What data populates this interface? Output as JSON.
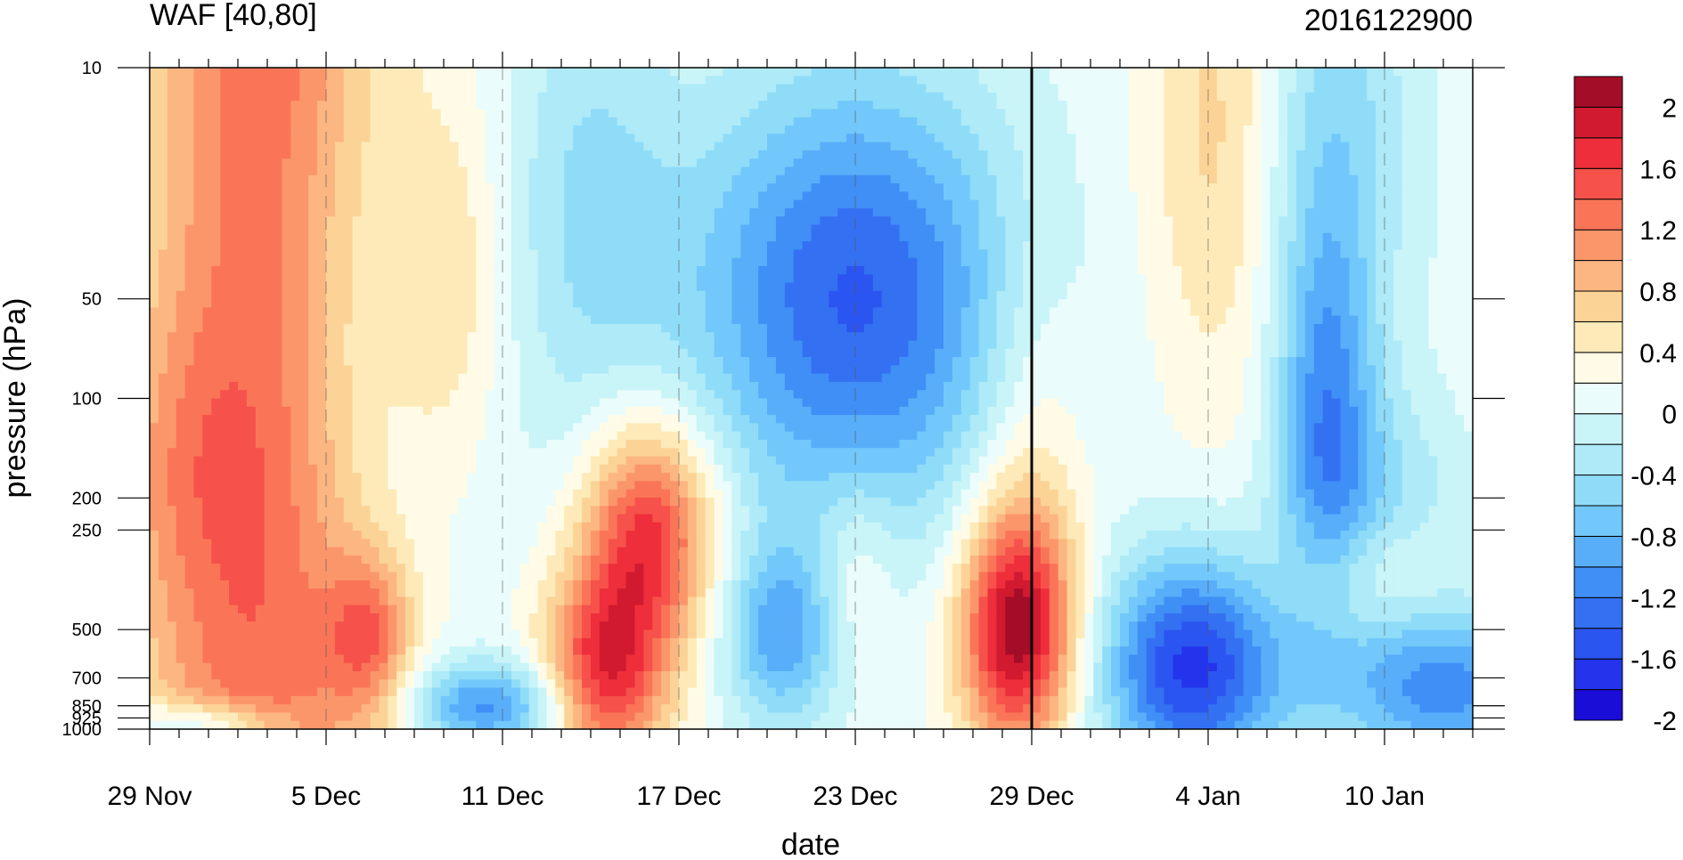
{
  "chart_data": {
    "type": "heatmap",
    "title_left": "WAF [40,80]",
    "title_right": "2016122900",
    "xlabel": "date",
    "ylabel": "pressure (hPa)",
    "x_tick_labels": [
      "29 Nov",
      "5 Dec",
      "11 Dec",
      "17 Dec",
      "23 Dec",
      "29 Dec",
      "4 Jan",
      "10 Jan"
    ],
    "x_tick_dates": [
      "2016-11-29",
      "2016-12-05",
      "2016-12-11",
      "2016-12-17",
      "2016-12-23",
      "2016-12-29",
      "2017-01-04",
      "2017-01-10"
    ],
    "x_range": [
      "2016-11-29",
      "2017-01-13"
    ],
    "y_tick_labels": [
      "10",
      "50",
      "100",
      "200",
      "250",
      "500",
      "700",
      "850",
      "925",
      "1000"
    ],
    "y_tick_values": [
      10,
      50,
      100,
      200,
      250,
      500,
      700,
      850,
      925,
      1000
    ],
    "y_range": [
      1000,
      10
    ],
    "y_scale": "log",
    "reference_date": "2016-12-29",
    "colorbar": {
      "labels": [
        "2",
        "1.6",
        "1.2",
        "0.8",
        "0.4",
        "0",
        "-0.4",
        "-0.8",
        "-1.2",
        "-1.6",
        "-2"
      ],
      "levels": [
        -2,
        -1.8,
        -1.6,
        -1.4,
        -1.2,
        -1,
        -0.8,
        -0.6,
        -0.4,
        -0.2,
        0,
        0.2,
        0.4,
        0.6,
        0.8,
        1,
        1.2,
        1.4,
        1.6,
        1.8,
        2
      ],
      "colors": [
        "#1a0dd8",
        "#2434ec",
        "#2b55f0",
        "#3471f2",
        "#3f8ff6",
        "#59aefa",
        "#72c8fa",
        "#8fdcf8",
        "#aeeaf8",
        "#c9f4f8",
        "#eafcfb",
        "#fffbe6",
        "#fdeab8",
        "#fcd397",
        "#fcb681",
        "#fb966b",
        "#fa7557",
        "#f6514b",
        "#ee2e3a",
        "#d11a30",
        "#a40d27"
      ],
      "position": "right"
    },
    "field_description": "WAF (wave activity flux) time-pressure section; positive maxima near 16 Dec 250-700 hPa and 28 Dec 500 hPa, negative minima near 23 Dec 50 hPa and 3 Jan 500-850 hPa"
  }
}
